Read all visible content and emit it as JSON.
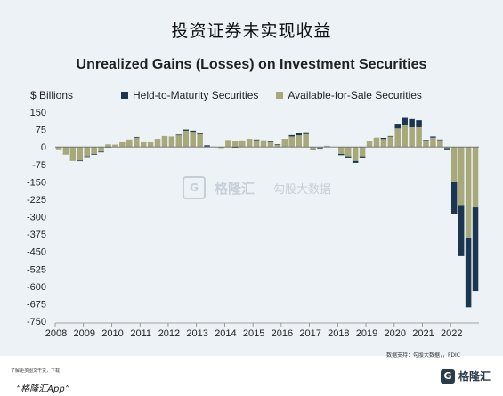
{
  "header": {
    "cn_title": "投资证券未实现收益"
  },
  "footer": {
    "source": "数据支持：勾股大数据，，FDIC",
    "note": "了解更多图文干货，下载",
    "app": "“格隆汇App”",
    "brand_logo": "G",
    "brand_name": "格隆汇"
  },
  "watermark": {
    "logo": "G",
    "text": "格隆汇",
    "text2": "勾股大数据"
  },
  "colors": {
    "htm": "#1c3550",
    "afs": "#a8a97a",
    "panel": "#edf2f7"
  },
  "chart_data": {
    "type": "bar",
    "stacked": true,
    "title": "Unrealized Gains (Losses) on Investment Securities",
    "unit_label": "$ Billions",
    "legend_position": "top",
    "ylim": [
      -750,
      150
    ],
    "yticks": [
      150,
      75,
      0,
      -75,
      -150,
      -225,
      -300,
      -375,
      -450,
      -525,
      -600,
      -675,
      -750
    ],
    "xtick_labels": [
      "2008",
      "2009",
      "2010",
      "2011",
      "2012",
      "2013",
      "2014",
      "2015",
      "2016",
      "2017",
      "2018",
      "2019",
      "2020",
      "2021",
      "2022"
    ],
    "categories": [
      "2008Q1",
      "2008Q2",
      "2008Q3",
      "2008Q4",
      "2009Q1",
      "2009Q2",
      "2009Q3",
      "2009Q4",
      "2010Q1",
      "2010Q2",
      "2010Q3",
      "2010Q4",
      "2011Q1",
      "2011Q2",
      "2011Q3",
      "2011Q4",
      "2012Q1",
      "2012Q2",
      "2012Q3",
      "2012Q4",
      "2013Q1",
      "2013Q2",
      "2013Q3",
      "2013Q4",
      "2014Q1",
      "2014Q2",
      "2014Q3",
      "2014Q4",
      "2015Q1",
      "2015Q2",
      "2015Q3",
      "2015Q4",
      "2016Q1",
      "2016Q2",
      "2016Q3",
      "2016Q4",
      "2017Q1",
      "2017Q2",
      "2017Q3",
      "2017Q4",
      "2018Q1",
      "2018Q2",
      "2018Q3",
      "2018Q4",
      "2019Q1",
      "2019Q2",
      "2019Q3",
      "2019Q4",
      "2020Q1",
      "2020Q2",
      "2020Q3",
      "2020Q4",
      "2021Q1",
      "2021Q2",
      "2021Q3",
      "2021Q4",
      "2022Q1",
      "2022Q2",
      "2022Q3",
      "2022Q4"
    ],
    "series": [
      {
        "name": "Held-to-Maturity Securities",
        "values": [
          0,
          0,
          0,
          -3,
          -3,
          -3,
          -3,
          -2,
          0,
          0,
          0,
          3,
          0,
          0,
          0,
          0,
          0,
          3,
          5,
          5,
          5,
          5,
          0,
          0,
          0,
          -3,
          0,
          0,
          3,
          3,
          3,
          2,
          0,
          6,
          11,
          8,
          -2,
          -2,
          0,
          0,
          -5,
          -5,
          -8,
          -5,
          0,
          0,
          5,
          2,
          20,
          30,
          35,
          30,
          5,
          5,
          2,
          -5,
          -140,
          -220,
          -300,
          -360
        ]
      },
      {
        "name": "Available-for-Sale Securities",
        "values": [
          -10,
          -33,
          -60,
          -58,
          -40,
          -30,
          -20,
          11,
          10,
          20,
          32,
          40,
          20,
          20,
          35,
          47,
          45,
          50,
          70,
          65,
          55,
          2,
          1,
          -5,
          30,
          25,
          28,
          35,
          29,
          25,
          21,
          10,
          35,
          45,
          50,
          55,
          -10,
          -5,
          5,
          0,
          -30,
          -40,
          -60,
          -40,
          25,
          40,
          34,
          45,
          80,
          95,
          85,
          85,
          25,
          40,
          30,
          -5,
          -150,
          -250,
          -390,
          -260
        ]
      }
    ]
  }
}
